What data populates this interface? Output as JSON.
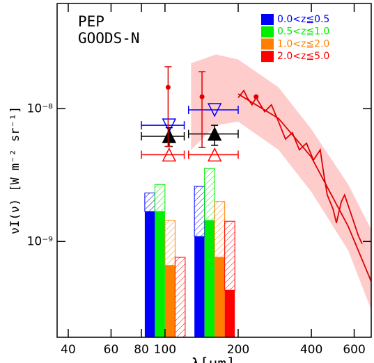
{
  "chart_data": {
    "type": "sed",
    "annotations": [
      "PEP",
      "GOODS-N"
    ],
    "xlabel": "λ[μm]",
    "ylabel": "νI(ν) [W m⁻² sr⁻¹]",
    "xscale": "log",
    "yscale": "log",
    "xlim": [
      36,
      705
    ],
    "ylim": [
      1.9e-10,
      6.2e-08
    ],
    "xticks": [
      40,
      60,
      80,
      100,
      200,
      400,
      600
    ],
    "yticks": [
      {
        "value": 1e-08,
        "label": "10⁻⁸"
      },
      {
        "value": 1e-09,
        "label": "10⁻⁹"
      }
    ],
    "legend": "top-right",
    "bar_groups": [
      100,
      160
    ],
    "series": [
      {
        "name": "0.0<z≦0.5",
        "color": "#0000ff",
        "values": [
          1.68e-09,
          1.09e-09
        ],
        "upper_values": [
          2.32e-09,
          2.6e-09
        ]
      },
      {
        "name": "0.5<z≦1.0",
        "color": "#00ee00",
        "values": [
          1.68e-09,
          1.44e-09
        ],
        "upper_values": [
          2.69e-09,
          3.55e-09
        ]
      },
      {
        "name": "1.0<z≦2.0",
        "color": "#ff8000",
        "values": [
          6.6e-10,
          7.6e-10
        ],
        "upper_values": [
          1.44e-09,
          2e-09
        ]
      },
      {
        "name": "2.0<z≦5.0",
        "color": "#ff0000",
        "values": [
          null,
          4.3e-10
        ],
        "upper_values": [
          7.6e-10,
          1.42e-09
        ]
      }
    ],
    "markers": [
      {
        "marker": "open-down-triangle",
        "color": "#0000ff",
        "x": [
          104,
          160
        ],
        "values": [
          7.5e-09,
          9.8e-09
        ],
        "x_lower": [
          80,
          125
        ],
        "x_upper": [
          120,
          200
        ]
      },
      {
        "marker": "filled-up-triangle",
        "color": "#000000",
        "x": [
          104,
          160
        ],
        "values": [
          6.2e-09,
          6.45e-09
        ],
        "x_lower": [
          80,
          125
        ],
        "x_upper": [
          120,
          200
        ],
        "y_lower": [
          5.2e-09,
          5.3e-09
        ],
        "y_upper": [
          7.2e-09,
          7.5e-09
        ]
      },
      {
        "marker": "open-up-triangle",
        "color": "#ff0000",
        "x": [
          104,
          160
        ],
        "values": [
          4.5e-09,
          4.5e-09
        ],
        "x_lower": [
          80,
          125
        ],
        "x_upper": [
          120,
          200
        ]
      },
      {
        "marker": "dot",
        "color": "#dd0000",
        "x": [
          103,
          142,
          237
        ],
        "values": [
          1.45e-08,
          1.23e-08,
          1.23e-08
        ],
        "y_lower": [
          5.2e-09,
          5.1e-09,
          null
        ],
        "y_upper": [
          2.07e-08,
          1.9e-08,
          null
        ]
      }
    ],
    "band": {
      "color": "#ffcccc",
      "x": [
        128,
        162,
        200,
        293,
        399,
        567,
        705
      ],
      "lower": [
        4.9e-09,
        7.5e-09,
        8e-09,
        4.9e-09,
        2.38e-09,
        8.55e-10,
        3.07e-10
      ],
      "upper": [
        2.2e-08,
        2.56e-08,
        2.35e-08,
        1.45e-08,
        7.05e-09,
        2.69e-09,
        1.23e-09
      ]
    },
    "lines": [
      {
        "color": "#dd0000",
        "x": [
          200,
          293,
          399,
          567,
          705
        ],
        "values": [
          1.29e-08,
          8.45e-09,
          4.35e-09,
          1.3e-09,
          5e-10
        ]
      },
      {
        "color": "#dd0000",
        "x": [
          200,
          211,
          218,
          228,
          237,
          257,
          274,
          293,
          313,
          334,
          357,
          382,
          408,
          435,
          450,
          465,
          491,
          507,
          531,
          548,
          586,
          626,
          647
        ],
        "values": [
          1.21e-08,
          1.37e-08,
          1.21e-08,
          1.07e-08,
          1.21e-08,
          9.5e-09,
          1.07e-08,
          8e-09,
          5.9e-09,
          6.6e-09,
          4.9e-09,
          5.5e-09,
          4.1e-09,
          4.9e-09,
          3.2e-09,
          2.24e-09,
          1.76e-09,
          1.38e-09,
          1.99e-09,
          2.24e-09,
          1.56e-09,
          1.09e-09,
          9.6e-10
        ]
      }
    ]
  }
}
